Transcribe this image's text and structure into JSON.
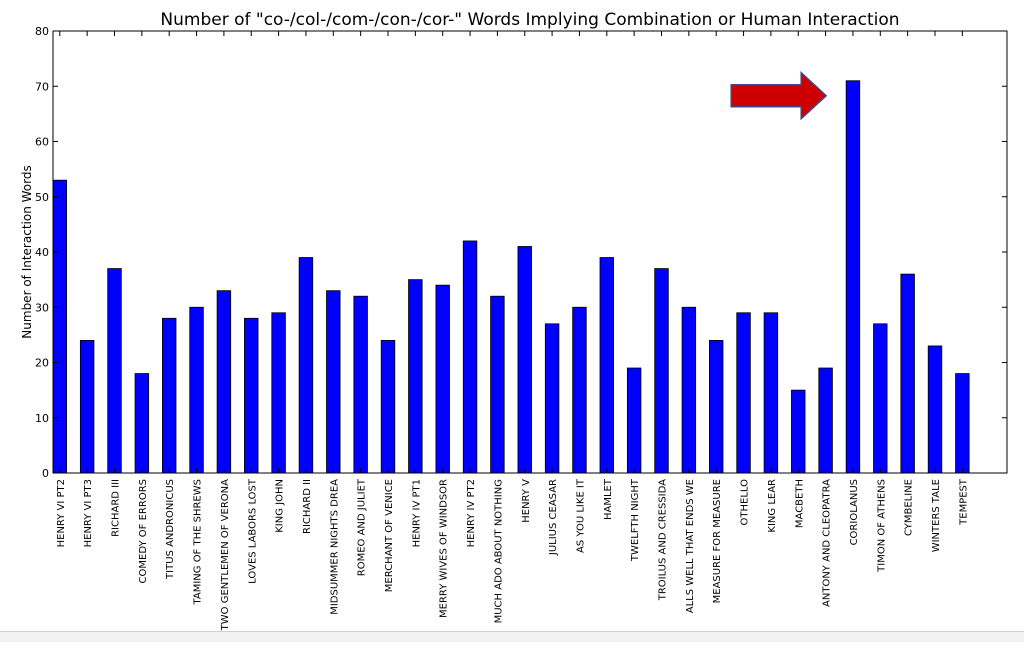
{
  "chart_data": {
    "type": "bar",
    "title": "Number of \"co-/col-/com-/con-/cor-\" Words Implying Combination or Human Interaction",
    "xlabel": "",
    "ylabel": "Number of Interaction Words",
    "ylim": [
      0,
      80
    ],
    "yticks": [
      "0",
      "10",
      "20",
      "30",
      "40",
      "50",
      "60",
      "70",
      "80"
    ],
    "grid": false,
    "bar_color": "#0000ff",
    "categories": [
      "HENRY VI PT2",
      "HENRY VI PT3",
      "RICHARD III",
      "COMEDY OF ERRORS",
      "TITUS ANDRONICUS",
      "TAMING OF THE SHREWS",
      "TWO GENTLEMEN OF VERONA",
      "LOVES LABORS LOST",
      "KING JOHN",
      "RICHARD II",
      "MIDSUMMER NIGHTS DREA",
      "ROMEO AND JULIET",
      "MERCHANT OF VENICE",
      "HENRY IV PT1",
      "MERRY WIVES OF WINDSOR",
      "HENRY IV PT2",
      "MUCH ADO ABOUT NOTHING",
      "HENRY V",
      "JULIUS CEASAR",
      "AS YOU LIKE IT",
      "HAMLET",
      "TWELFTH NIGHT",
      "TROILUS AND CRESSIDA",
      "ALLS WELL THAT ENDS WE",
      "MEASURE FOR MEASURE",
      "OTHELLO",
      "KING LEAR",
      "MACBETH",
      "ANTONY AND CLEOPATRA",
      "CORIOLANUS",
      "TIMON OF ATHENS",
      "CYMBELINE",
      "WINTERS TALE",
      "TEMPEST"
    ],
    "values": [
      53,
      24,
      37,
      18,
      28,
      30,
      33,
      28,
      29,
      39,
      33,
      32,
      24,
      35,
      34,
      42,
      32,
      41,
      27,
      30,
      39,
      19,
      37,
      30,
      24,
      29,
      29,
      15,
      19,
      71,
      27,
      36,
      23,
      18
    ],
    "annotation": {
      "type": "arrow",
      "points_to": "CORIOLANUS",
      "fill": "#cc0000",
      "stroke": "#3a4a8a"
    }
  }
}
